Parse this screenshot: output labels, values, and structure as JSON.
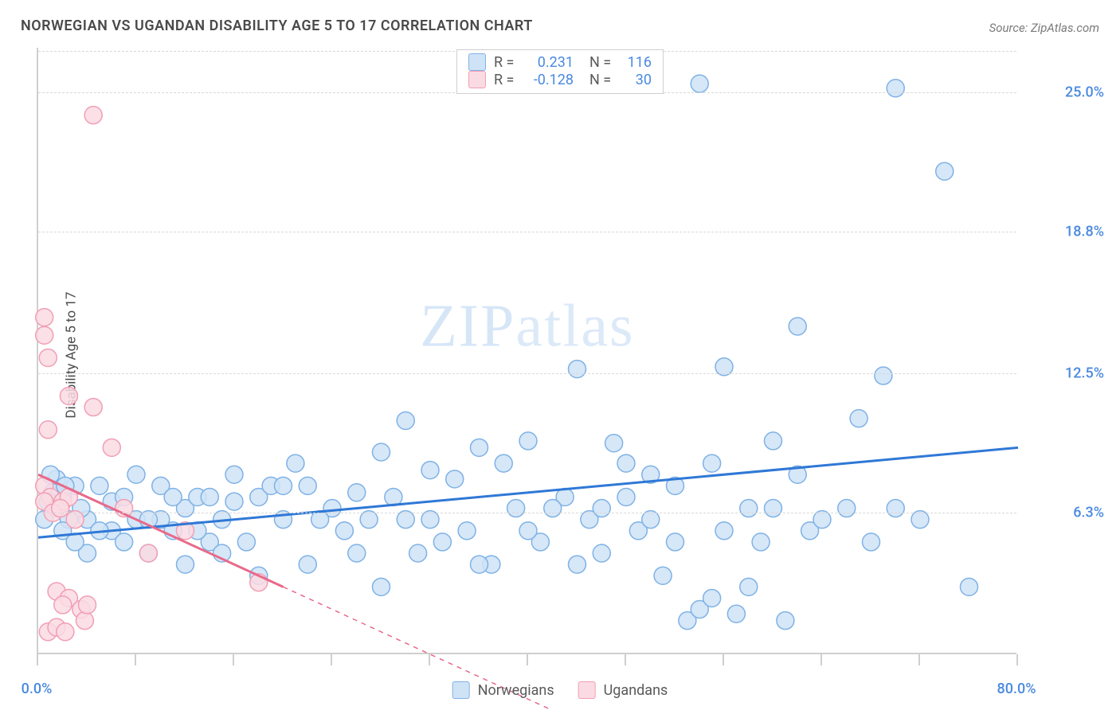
{
  "title": "NORWEGIAN VS UGANDAN DISABILITY AGE 5 TO 17 CORRELATION CHART",
  "source_label": "Source:",
  "source_value": "ZipAtlas.com",
  "ylabel": "Disability Age 5 to 17",
  "watermark": {
    "part1": "ZIP",
    "part2": "atlas"
  },
  "chart": {
    "type": "scatter",
    "xlim": [
      0,
      80
    ],
    "ylim": [
      0,
      27
    ],
    "x_ticks": [
      0,
      8,
      16,
      24,
      32,
      40,
      48,
      56,
      64,
      72,
      80
    ],
    "x_tick_labels": {
      "0": "0.0%",
      "80": "80.0%"
    },
    "y_ticks": [
      6.3,
      12.5,
      18.8,
      25.0
    ],
    "y_tick_labels": [
      "6.3%",
      "12.5%",
      "18.8%",
      "25.0%"
    ],
    "y_tick_color": "#4a8ae0",
    "x_tick_color": "#4a8ae0",
    "grid_color": "#d8d8d8",
    "background_color": "#ffffff",
    "series": [
      {
        "name": "Norwegians",
        "marker_fill": "#cfe3f7",
        "marker_stroke": "#7fb2e5",
        "marker_radius": 11,
        "trend": {
          "slope_solid": true,
          "color": "#2f78d6",
          "width": 3,
          "y_at_x0": 5.2,
          "y_at_x80": 9.2
        },
        "R": 0.231,
        "N": 116,
        "points": [
          [
            54,
            25.4
          ],
          [
            70,
            25.2
          ],
          [
            74,
            21.5
          ],
          [
            62,
            14.6
          ],
          [
            69,
            12.4
          ],
          [
            56,
            12.8
          ],
          [
            44,
            12.7
          ],
          [
            48,
            7.0
          ],
          [
            52,
            7.5
          ],
          [
            55,
            8.5
          ],
          [
            58,
            6.5
          ],
          [
            47,
            9.4
          ],
          [
            40,
            9.5
          ],
          [
            36,
            9.2
          ],
          [
            30,
            10.4
          ],
          [
            32,
            6.0
          ],
          [
            32,
            8.2
          ],
          [
            28,
            9.0
          ],
          [
            26,
            7.2
          ],
          [
            24,
            6.5
          ],
          [
            22,
            7.5
          ],
          [
            20,
            6.0
          ],
          [
            18,
            7.0
          ],
          [
            16,
            6.8
          ],
          [
            14,
            5.0
          ],
          [
            12,
            6.5
          ],
          [
            10,
            7.5
          ],
          [
            8,
            6.0
          ],
          [
            6,
            5.5
          ],
          [
            4,
            6.0
          ],
          [
            3,
            7.5
          ],
          [
            2,
            7.0
          ],
          [
            1,
            6.5
          ],
          [
            1.5,
            7.8
          ],
          [
            2.5,
            6.0
          ],
          [
            3.5,
            6.5
          ],
          [
            5,
            7.5
          ],
          [
            7,
            5.0
          ],
          [
            9,
            4.5
          ],
          [
            11,
            5.5
          ],
          [
            13,
            7.0
          ],
          [
            15,
            6.0
          ],
          [
            17,
            5.0
          ],
          [
            19,
            7.5
          ],
          [
            21,
            8.5
          ],
          [
            23,
            6.0
          ],
          [
            25,
            5.5
          ],
          [
            27,
            6.0
          ],
          [
            29,
            7.0
          ],
          [
            31,
            4.5
          ],
          [
            33,
            5.0
          ],
          [
            35,
            5.5
          ],
          [
            37,
            4.0
          ],
          [
            39,
            6.5
          ],
          [
            41,
            5.0
          ],
          [
            43,
            7.0
          ],
          [
            45,
            6.0
          ],
          [
            46,
            4.5
          ],
          [
            49,
            5.5
          ],
          [
            50,
            8.0
          ],
          [
            51,
            3.5
          ],
          [
            53,
            1.5
          ],
          [
            54,
            2.0
          ],
          [
            55,
            2.5
          ],
          [
            56,
            5.5
          ],
          [
            57,
            1.8
          ],
          [
            58,
            3.0
          ],
          [
            59,
            5.0
          ],
          [
            60,
            6.5
          ],
          [
            60,
            9.5
          ],
          [
            61,
            1.5
          ],
          [
            62,
            8.0
          ],
          [
            63,
            5.5
          ],
          [
            64,
            6.0
          ],
          [
            66,
            6.5
          ],
          [
            67,
            10.5
          ],
          [
            68,
            5.0
          ],
          [
            70,
            6.5
          ],
          [
            72,
            6.0
          ],
          [
            76,
            3.0
          ],
          [
            34,
            7.8
          ],
          [
            36,
            4.0
          ],
          [
            38,
            8.5
          ],
          [
            40,
            5.5
          ],
          [
            42,
            6.5
          ],
          [
            44,
            4.0
          ],
          [
            46,
            6.5
          ],
          [
            48,
            8.5
          ],
          [
            50,
            6.0
          ],
          [
            52,
            5.0
          ],
          [
            26,
            4.5
          ],
          [
            28,
            3.0
          ],
          [
            30,
            6.0
          ],
          [
            22,
            4.0
          ],
          [
            20,
            7.5
          ],
          [
            18,
            3.5
          ],
          [
            16,
            8.0
          ],
          [
            14,
            7.0
          ],
          [
            12,
            4.0
          ],
          [
            10,
            6.0
          ],
          [
            8,
            8.0
          ],
          [
            6,
            6.8
          ],
          [
            4,
            4.5
          ],
          [
            2,
            5.5
          ],
          [
            1,
            8.0
          ],
          [
            3,
            5.0
          ],
          [
            5,
            5.5
          ],
          [
            7,
            7.0
          ],
          [
            9,
            6.0
          ],
          [
            11,
            7.0
          ],
          [
            13,
            5.5
          ],
          [
            15,
            4.5
          ],
          [
            0.5,
            6.0
          ],
          [
            1.2,
            7.2
          ],
          [
            0.8,
            6.8
          ],
          [
            2.2,
            7.5
          ]
        ]
      },
      {
        "name": "Ugandans",
        "marker_fill": "#fadbe3",
        "marker_stroke": "#f19fb5",
        "marker_radius": 11,
        "trend": {
          "color": "#e86a8a",
          "width": 3,
          "y_at_x0": 8.0,
          "y_at_x20": 3.0,
          "dash_extend_to_x": 42
        },
        "R": -0.128,
        "N": 30,
        "points": [
          [
            4.5,
            24.0
          ],
          [
            0.5,
            15.0
          ],
          [
            0.5,
            14.2
          ],
          [
            0.8,
            13.2
          ],
          [
            2.5,
            11.5
          ],
          [
            4.5,
            11.0
          ],
          [
            0.8,
            10.0
          ],
          [
            6.0,
            9.2
          ],
          [
            0.5,
            7.5
          ],
          [
            1.0,
            7.0
          ],
          [
            1.5,
            6.5
          ],
          [
            2.0,
            6.8
          ],
          [
            2.5,
            7.0
          ],
          [
            0.5,
            6.8
          ],
          [
            1.2,
            6.3
          ],
          [
            1.8,
            6.5
          ],
          [
            3.0,
            6.0
          ],
          [
            7.0,
            6.5
          ],
          [
            12.0,
            5.5
          ],
          [
            18.0,
            3.2
          ],
          [
            9.0,
            4.5
          ],
          [
            1.5,
            2.8
          ],
          [
            2.5,
            2.5
          ],
          [
            3.5,
            2.0
          ],
          [
            0.8,
            1.0
          ],
          [
            1.5,
            1.2
          ],
          [
            2.2,
            1.0
          ],
          [
            3.8,
            1.5
          ],
          [
            2.0,
            2.2
          ],
          [
            4.0,
            2.2
          ]
        ]
      }
    ]
  },
  "legend_top": {
    "rows": [
      {
        "swatch_fill": "#cfe3f7",
        "swatch_stroke": "#7fb2e5",
        "R_label": "R  =",
        "R_value": "0.231",
        "N_label": "N  =",
        "N_value": "116",
        "value_color": "#4a8ae0"
      },
      {
        "swatch_fill": "#fadbe3",
        "swatch_stroke": "#f19fb5",
        "R_label": "R  =",
        "R_value": "-0.128",
        "N_label": "N  =",
        "N_value": "30",
        "value_color": "#4a8ae0"
      }
    ]
  },
  "legend_bottom": [
    {
      "swatch_fill": "#cfe3f7",
      "swatch_stroke": "#7fb2e5",
      "label": "Norwegians"
    },
    {
      "swatch_fill": "#fadbe3",
      "swatch_stroke": "#f19fb5",
      "label": "Ugandans"
    }
  ]
}
